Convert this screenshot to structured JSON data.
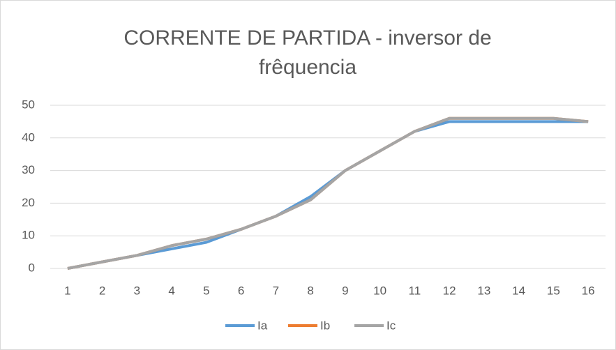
{
  "chart_data": {
    "type": "line",
    "title": "CORRENTE DE PARTIDA - inversor de frêquencia",
    "categories": [
      "1",
      "2",
      "3",
      "4",
      "5",
      "6",
      "7",
      "8",
      "9",
      "10",
      "11",
      "12",
      "13",
      "14",
      "15",
      "16"
    ],
    "series": [
      {
        "name": "Ia",
        "color": "#5b9bd5",
        "values": [
          0,
          2,
          4,
          6,
          8,
          12,
          16,
          22,
          30,
          36,
          42,
          45,
          45,
          45,
          45,
          45
        ]
      },
      {
        "name": "Ib",
        "color": "#ed7d31",
        "values": [
          0,
          2,
          4,
          7,
          9,
          12,
          16,
          21,
          30,
          36,
          42,
          46,
          46,
          46,
          46,
          45
        ]
      },
      {
        "name": "Ic",
        "color": "#a5a5a5",
        "values": [
          0,
          2,
          4,
          7,
          9,
          12,
          16,
          21,
          30,
          36,
          42,
          46,
          46,
          46,
          46,
          45
        ]
      }
    ],
    "ylim": [
      0,
      50
    ],
    "yticks": [
      0,
      10,
      20,
      30,
      40,
      50
    ],
    "grid": true,
    "legend": "bottom"
  }
}
